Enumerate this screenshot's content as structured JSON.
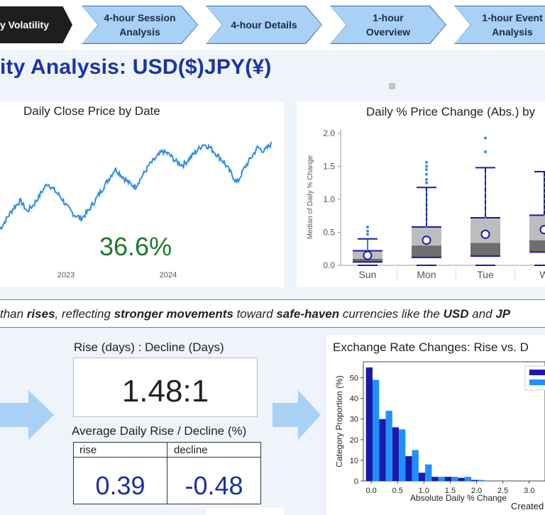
{
  "nav": {
    "items": [
      {
        "label": "y Volatility",
        "active": true
      },
      {
        "label_line1": "4-hour Session",
        "label_line2": "Analysis"
      },
      {
        "label_line1": "4-hour Details",
        "label_line2": ""
      },
      {
        "label_line1": "1-hour",
        "label_line2": "Overview"
      },
      {
        "label_line1": "1-hour Event",
        "label_line2": "Analysis"
      }
    ]
  },
  "page": {
    "title": "ity Analysis: USD($)JPY(¥)"
  },
  "line_panel": {
    "title": "Daily Close Price by Date",
    "kpi": "36.6%",
    "x_ticks": [
      "2023",
      "2024"
    ]
  },
  "box_panel": {
    "title": "Daily % Price Change (Abs.) by",
    "y_label": "Median of Daily % Change",
    "y_ticks": [
      "2.0",
      "1.5",
      "1.0",
      "0.5",
      "0.0"
    ],
    "x_ticks": [
      "Sun",
      "Mon",
      "Tue",
      "W"
    ]
  },
  "insight": {
    "t1": "than ",
    "b1": "rises",
    "t2": ", reflecting ",
    "b2": "stronger movements",
    "t3": " toward ",
    "b3": "safe-haven",
    "t4": " currencies like the ",
    "b4": "USD",
    "t5": " and ",
    "b5": "JP"
  },
  "ratio": {
    "label": "Rise (days) : Decline (Days)",
    "value": "1.48:1"
  },
  "avg": {
    "label": "Average Daily Rise / Decline (%)",
    "rise_header": "rise",
    "decline_header": "decline",
    "rise_value": "0.39",
    "decline_value": "-0.48"
  },
  "hist_panel": {
    "title": "Exchange Rate Changes: Rise vs. D",
    "y_label": "Category Proportion (%)",
    "x_label": "Absolute Daily % Change",
    "created": "Created"
  },
  "colors": {
    "accent_blue": "#1a33a8",
    "line_blue": "#2f8be6",
    "kpi_green": "#1a7a2a",
    "hist_dark": "#1a1aa8",
    "hist_light": "#1e90ff",
    "arrow": "#a9d0f5"
  },
  "chart_data": [
    {
      "type": "line",
      "title": "Daily Close Price by Date",
      "x_ticks": [
        "2023",
        "2024"
      ],
      "series": [
        {
          "values": [
            128,
            131,
            134,
            136,
            133,
            135,
            138,
            141,
            139,
            137,
            134,
            132,
            131,
            133,
            136,
            139,
            142,
            145,
            143,
            141,
            140,
            143,
            146,
            148,
            150,
            149,
            147,
            146,
            148,
            150,
            152,
            151,
            149,
            147,
            144,
            141,
            145,
            148,
            151,
            150,
            152
          ]
        }
      ]
    },
    {
      "type": "box",
      "title": "Daily % Price Change (Abs.) by",
      "ylabel": "Median of Daily % Change",
      "categories": [
        "Sun",
        "Mon",
        "Tue",
        "W"
      ],
      "ylim": [
        0,
        2.0
      ],
      "boxes": [
        {
          "min": 0.0,
          "q1": 0.05,
          "median": 0.1,
          "q3": 0.22,
          "max": 0.4,
          "mean": 0.15,
          "outliers": [
            0.47,
            0.52,
            0.58
          ]
        },
        {
          "min": 0.0,
          "q1": 0.12,
          "median": 0.3,
          "q3": 0.58,
          "max": 1.18,
          "mean": 0.38,
          "outliers": [
            1.25,
            1.3,
            1.38,
            1.45,
            1.5,
            1.56
          ]
        },
        {
          "min": 0.0,
          "q1": 0.14,
          "median": 0.34,
          "q3": 0.72,
          "max": 1.48,
          "mean": 0.47,
          "outliers": [
            1.72,
            1.93
          ]
        },
        {
          "min": 0.0,
          "q1": 0.2,
          "median": 0.38,
          "q3": 0.76,
          "max": 1.42,
          "mean": 0.54,
          "outliers": []
        }
      ]
    },
    {
      "type": "bar",
      "title": "Exchange Rate Changes: Rise vs. D",
      "xlabel": "Absolute Daily % Change",
      "ylabel": "Category Proportion (%)",
      "x_ticks": [
        "0.0",
        "0.5",
        "1.0",
        "1.5",
        "2.0",
        "2.5",
        "3.0"
      ],
      "ylim": [
        0,
        55
      ],
      "bin_width": 0.25,
      "bins_start": [
        0.0,
        0.25,
        0.5,
        0.75,
        1.0,
        1.25,
        1.5,
        1.75,
        2.0
      ],
      "series": [
        {
          "color": "#1a1aa8",
          "values": [
            55,
            30,
            26,
            12,
            4,
            2,
            2,
            1.5,
            0.5
          ]
        },
        {
          "color": "#1e90ff",
          "values": [
            49,
            34,
            25,
            15,
            8,
            2,
            2,
            2,
            0.5
          ]
        }
      ]
    }
  ]
}
